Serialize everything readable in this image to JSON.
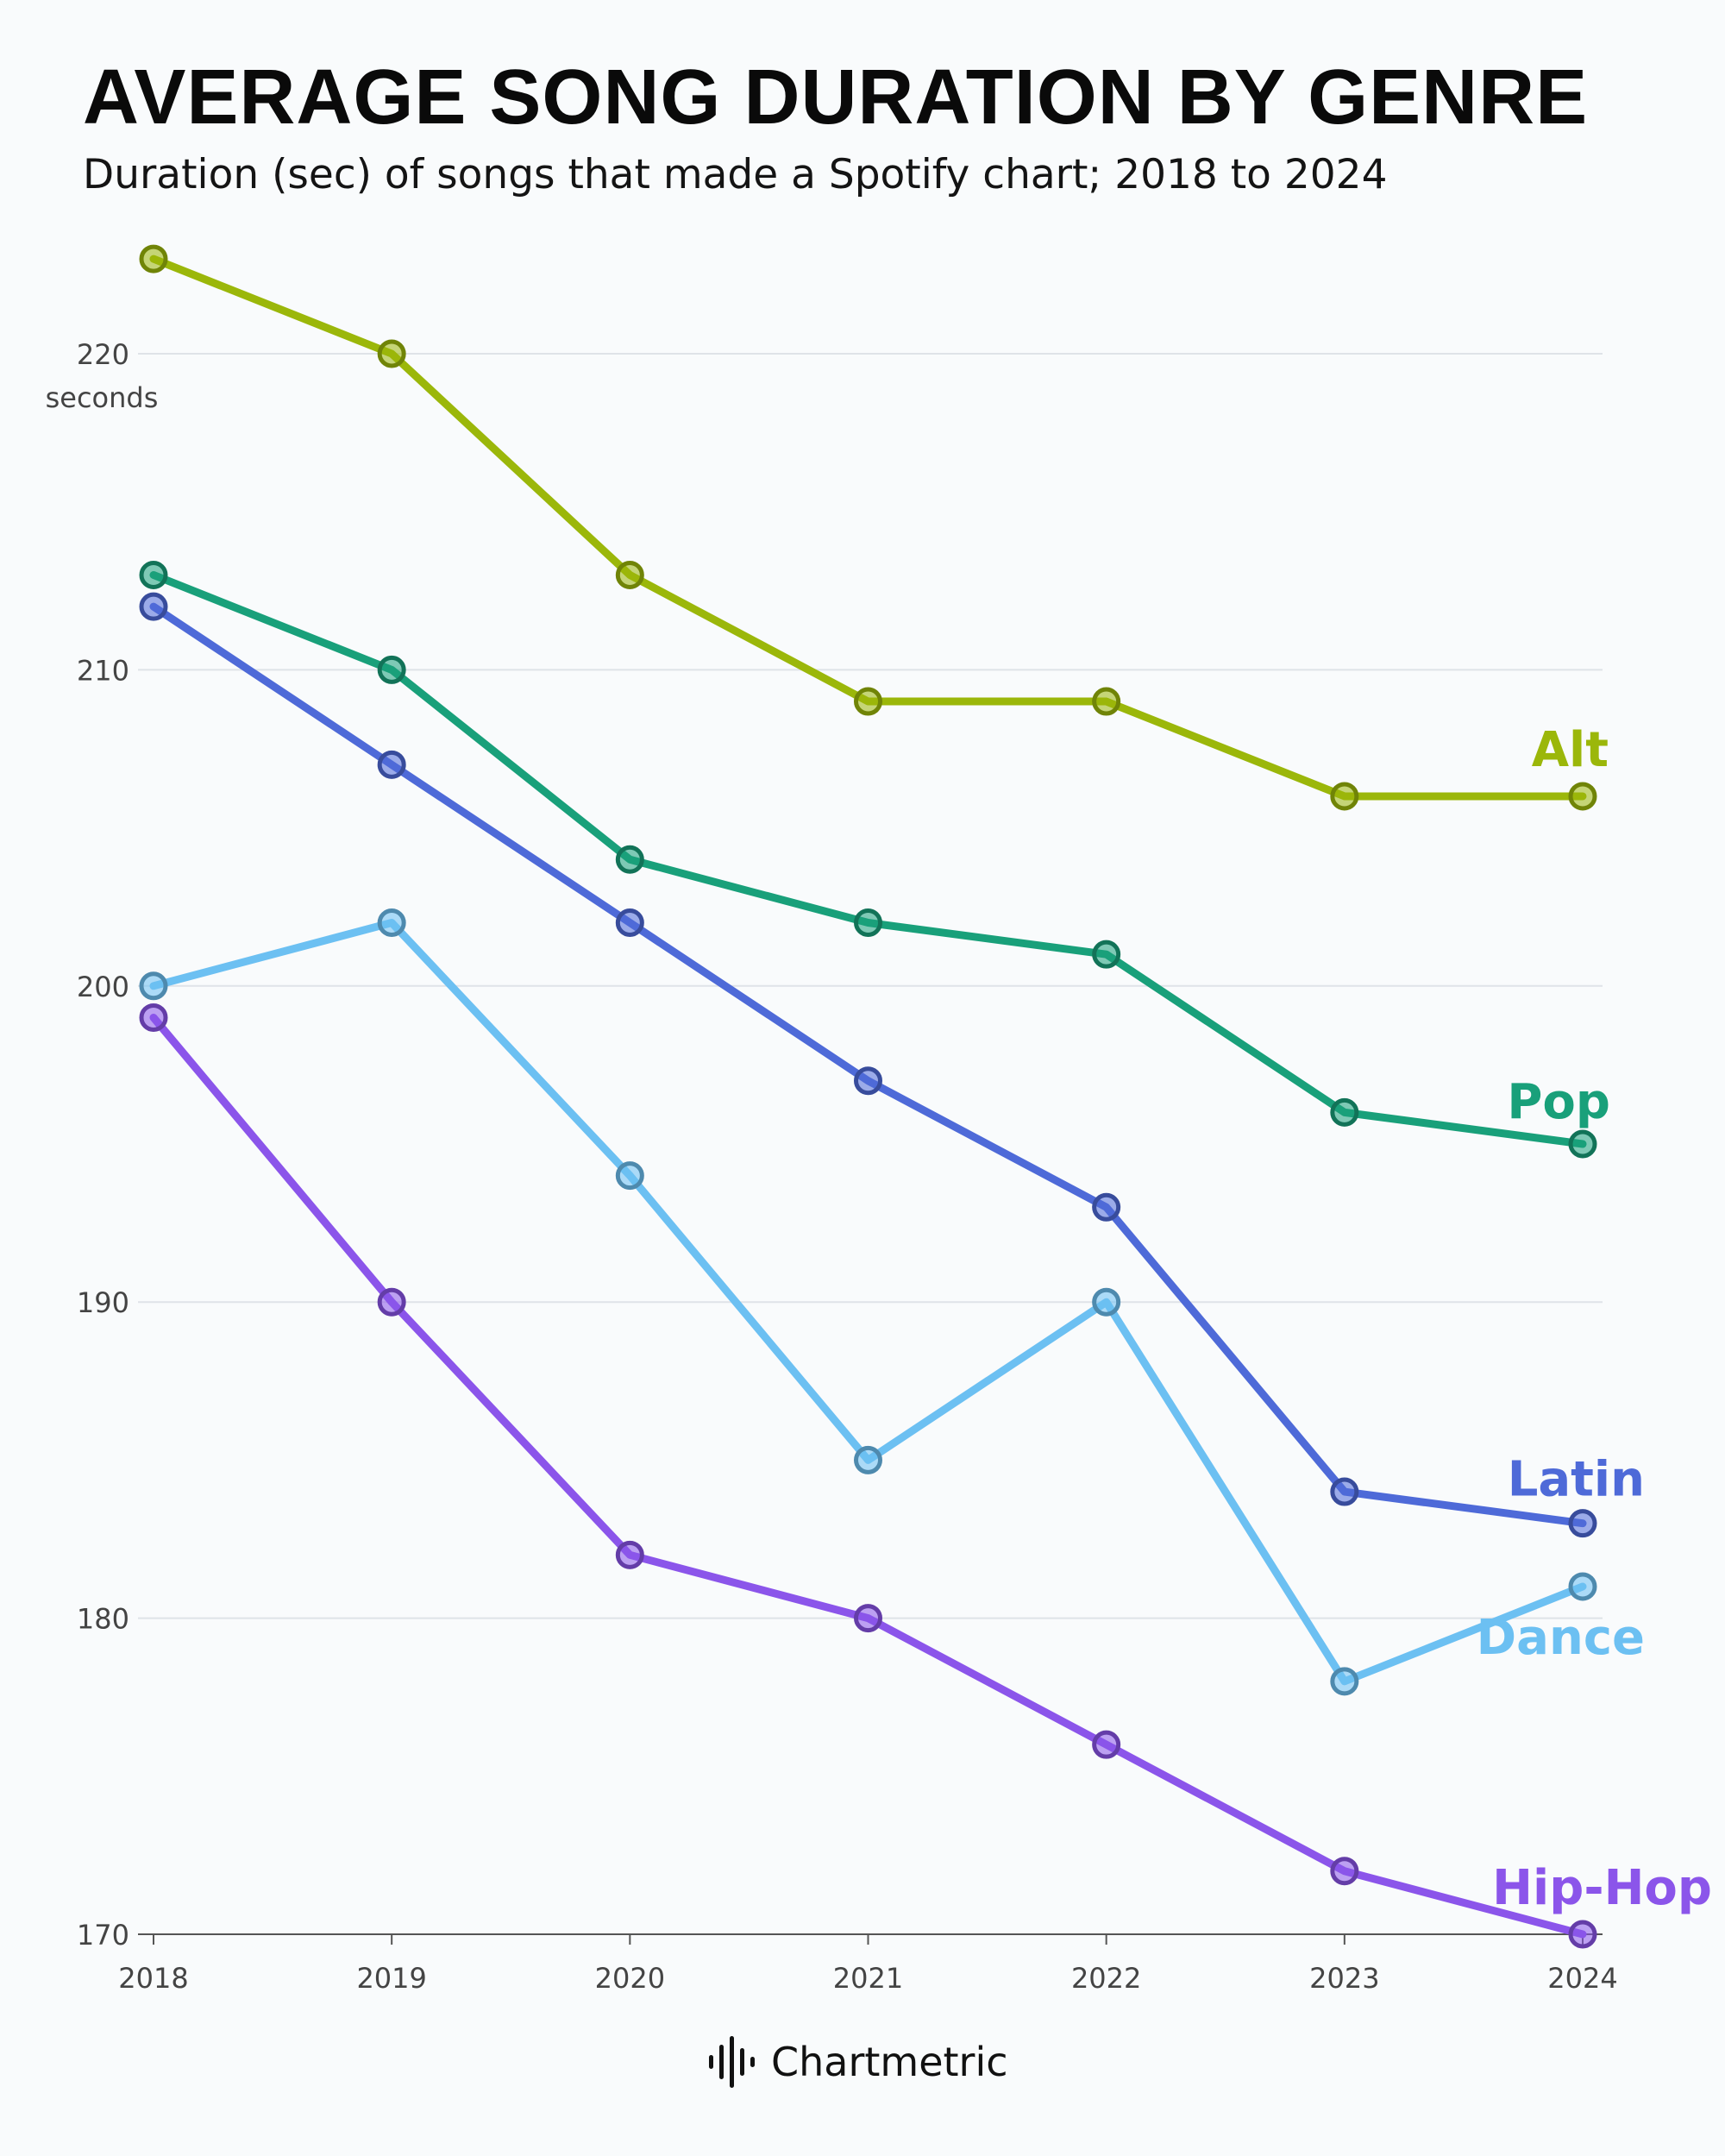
{
  "header": {
    "title": "AVERAGE SONG DURATION BY GENRE",
    "subtitle": "Duration (sec) of songs that made a Spotify chart; 2018 to 2024"
  },
  "footer": {
    "brand": "Chartmetric"
  },
  "chart_data": {
    "type": "line",
    "title": "AVERAGE SONG DURATION BY GENRE",
    "subtitle": "Duration (sec) of songs that made a Spotify chart; 2018 to 2024",
    "xlabel": "",
    "ylabel": "seconds",
    "x": [
      2018,
      2019,
      2020,
      2021,
      2022,
      2023,
      2024
    ],
    "ylim": [
      170,
      223
    ],
    "yticks": [
      170,
      180,
      190,
      200,
      210,
      220
    ],
    "grid": true,
    "legend": "direct labels at line ends",
    "series": [
      {
        "name": "Alt",
        "color": "#9bb70a",
        "values": [
          223,
          220,
          213,
          209,
          209,
          206,
          206
        ]
      },
      {
        "name": "Pop",
        "color": "#19a07a",
        "values": [
          213,
          210,
          204,
          202,
          201,
          196,
          195
        ]
      },
      {
        "name": "Latin",
        "color": "#4e6ad8",
        "values": [
          212,
          207,
          202,
          197,
          193,
          184,
          183
        ]
      },
      {
        "name": "Dance",
        "color": "#6cc0f2",
        "values": [
          200,
          202,
          194,
          185,
          190,
          178,
          181
        ]
      },
      {
        "name": "Hip-Hop",
        "color": "#8b55ea",
        "values": [
          199,
          190,
          182,
          180,
          176,
          172,
          170
        ]
      }
    ]
  }
}
